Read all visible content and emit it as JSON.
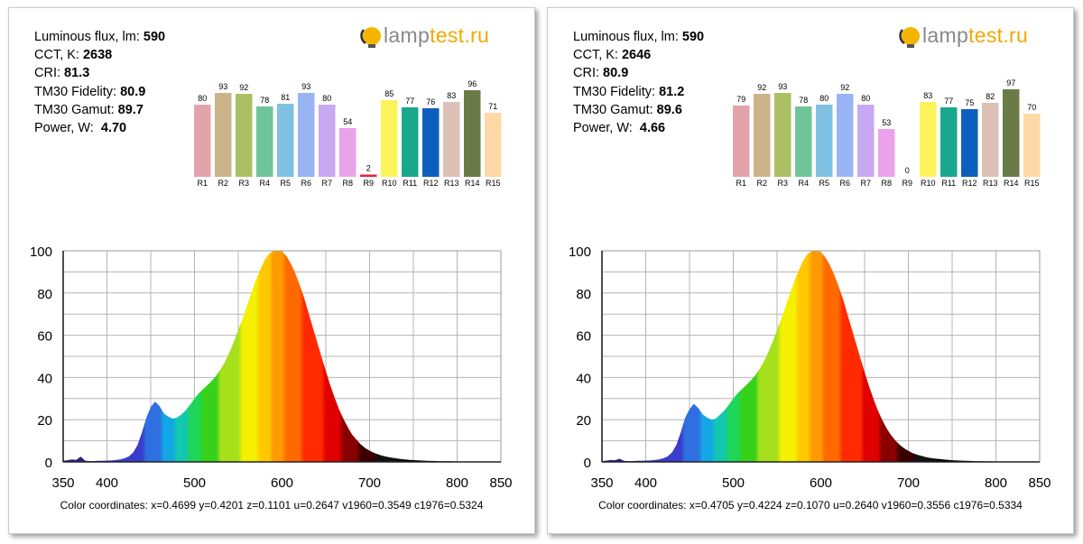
{
  "chart_data": [
    {
      "type": "area",
      "logo": {
        "text_gray": "lamp",
        "text_orange": "test.ru"
      },
      "stats": [
        {
          "label": "Luminous flux, lm:",
          "value": "590"
        },
        {
          "label": "CCT, K:",
          "value": "2638"
        },
        {
          "label": "CRI:",
          "value": "81.3"
        },
        {
          "label": "TM30 Fidelity:",
          "value": "80.9"
        },
        {
          "label": "TM30 Gamut:",
          "value": "89.7"
        },
        {
          "label": "Power, W:",
          "value": "4.70"
        }
      ],
      "cri_bars": {
        "categories": [
          "R1",
          "R2",
          "R3",
          "R4",
          "R5",
          "R6",
          "R7",
          "R8",
          "R9",
          "R10",
          "R11",
          "R12",
          "R13",
          "R14",
          "R15"
        ],
        "values": [
          80,
          93,
          92,
          78,
          81,
          93,
          80,
          54,
          2,
          85,
          77,
          76,
          83,
          96,
          71
        ],
        "colors": [
          "#e2a3ad",
          "#cbb488",
          "#abc065",
          "#6fc49a",
          "#7ec1e2",
          "#98b4f5",
          "#c8a8f3",
          "#eaa3ea",
          "#e8223a",
          "#fdf35a",
          "#19a88c",
          "#0d5fbe",
          "#dcc0b6",
          "#6a7b48",
          "#fed9a7"
        ]
      },
      "spectrum": {
        "x": [
          350,
          355,
          360,
          365,
          370,
          375,
          380,
          385,
          390,
          395,
          400,
          405,
          410,
          415,
          420,
          425,
          430,
          435,
          440,
          445,
          450,
          455,
          460,
          465,
          470,
          475,
          480,
          485,
          490,
          495,
          500,
          505,
          510,
          515,
          520,
          525,
          530,
          535,
          540,
          545,
          550,
          555,
          560,
          565,
          570,
          575,
          580,
          585,
          590,
          595,
          600,
          605,
          610,
          615,
          620,
          625,
          630,
          635,
          640,
          645,
          650,
          655,
          660,
          665,
          670,
          675,
          680,
          685,
          690,
          695,
          700,
          705,
          710,
          715,
          720,
          725,
          730,
          735,
          740,
          745,
          750,
          755,
          760,
          765,
          770,
          775,
          780,
          785,
          790,
          795,
          800,
          805,
          810,
          815,
          820,
          825,
          830,
          835,
          840,
          845,
          850
        ],
        "y": [
          0.5,
          0.8,
          1.2,
          1.0,
          2.5,
          0.6,
          0.4,
          0.4,
          0.5,
          0.5,
          0.6,
          0.7,
          0.9,
          1.2,
          1.7,
          2.6,
          4.5,
          8,
          14,
          21,
          26,
          28.6,
          26.5,
          23,
          21.5,
          20.5,
          21,
          22.5,
          24.5,
          27,
          30,
          32.5,
          34.5,
          36.5,
          38.5,
          41,
          44,
          47.5,
          52,
          57,
          62.5,
          68,
          74,
          80,
          86,
          91,
          95.5,
          98.5,
          99.8,
          100,
          99.8,
          97.5,
          94,
          89.5,
          84,
          78,
          71,
          64,
          57,
          50,
          43,
          36.5,
          30.5,
          25,
          20.5,
          16.5,
          13,
          10.5,
          8.3,
          6.6,
          5.3,
          4.3,
          3.5,
          2.9,
          2.4,
          2.0,
          1.7,
          1.4,
          1.2,
          1.0,
          0.85,
          0.72,
          0.62,
          0.54,
          0.47,
          0.41,
          0.36,
          0.32,
          0.28,
          0.25,
          0.22,
          0.2,
          0.18,
          0.16,
          0.15,
          0.14,
          0.13,
          0.12,
          0.11,
          0.1,
          0.1
        ],
        "xlim": [
          350,
          850
        ],
        "ylim": [
          0,
          100
        ],
        "xticks": [
          "350",
          "400",
          "500",
          "600",
          "700",
          "800",
          "850"
        ],
        "yticks": [
          "0",
          "20",
          "40",
          "60",
          "80",
          "100"
        ],
        "grid": true
      },
      "color_coordinates": "Color coordinates: x=0.4699 y=0.4201 z=0.1101 u=0.2647 v1960=0.3549 c1976=0.5324"
    },
    {
      "type": "area",
      "logo": {
        "text_gray": "lamp",
        "text_orange": "test.ru"
      },
      "stats": [
        {
          "label": "Luminous flux, lm:",
          "value": "590"
        },
        {
          "label": "CCT, K:",
          "value": "2646"
        },
        {
          "label": "CRI:",
          "value": "80.9"
        },
        {
          "label": "TM30 Fidelity:",
          "value": "81.2"
        },
        {
          "label": "TM30 Gamut:",
          "value": "89.6"
        },
        {
          "label": "Power, W:",
          "value": "4.66"
        }
      ],
      "cri_bars": {
        "categories": [
          "R1",
          "R2",
          "R3",
          "R4",
          "R5",
          "R6",
          "R7",
          "R8",
          "R9",
          "R10",
          "R11",
          "R12",
          "R13",
          "R14",
          "R15"
        ],
        "values": [
          79,
          92,
          93,
          78,
          80,
          92,
          80,
          53,
          0,
          83,
          77,
          75,
          82,
          97,
          70
        ],
        "colors": [
          "#e2a3ad",
          "#cbb488",
          "#abc065",
          "#6fc49a",
          "#7ec1e2",
          "#98b4f5",
          "#c8a8f3",
          "#eaa3ea",
          "#e8223a",
          "#fdf35a",
          "#19a88c",
          "#0d5fbe",
          "#dcc0b6",
          "#6a7b48",
          "#fed9a7"
        ]
      },
      "spectrum": {
        "x": [
          350,
          355,
          360,
          365,
          370,
          375,
          380,
          385,
          390,
          395,
          400,
          405,
          410,
          415,
          420,
          425,
          430,
          435,
          440,
          445,
          450,
          455,
          460,
          465,
          470,
          475,
          480,
          485,
          490,
          495,
          500,
          505,
          510,
          515,
          520,
          525,
          530,
          535,
          540,
          545,
          550,
          555,
          560,
          565,
          570,
          575,
          580,
          585,
          590,
          595,
          600,
          605,
          610,
          615,
          620,
          625,
          630,
          635,
          640,
          645,
          650,
          655,
          660,
          665,
          670,
          675,
          680,
          685,
          690,
          695,
          700,
          705,
          710,
          715,
          720,
          725,
          730,
          735,
          740,
          745,
          750,
          755,
          760,
          765,
          770,
          775,
          780,
          785,
          790,
          795,
          800,
          805,
          810,
          815,
          820,
          825,
          830,
          835,
          840,
          845,
          850
        ],
        "y": [
          0.4,
          0.6,
          0.9,
          0.8,
          1.5,
          0.5,
          0.4,
          0.4,
          0.5,
          0.5,
          0.6,
          0.7,
          0.9,
          1.2,
          1.7,
          2.6,
          4.5,
          8,
          14,
          21,
          25,
          27.5,
          25.5,
          22.5,
          21,
          20,
          20.5,
          22.5,
          24.5,
          27,
          30,
          32.5,
          34.5,
          36.5,
          38.5,
          41,
          44,
          47.5,
          52,
          57,
          62.5,
          68,
          74,
          80,
          86,
          91,
          95.5,
          98.5,
          99.8,
          100,
          99.5,
          97,
          93.5,
          89,
          83.5,
          77.5,
          70.5,
          63.5,
          56.5,
          49.5,
          42.5,
          36,
          30,
          24.5,
          20,
          16,
          12.8,
          10.2,
          8.1,
          6.5,
          5.2,
          4.2,
          3.4,
          2.8,
          2.3,
          1.9,
          1.6,
          1.35,
          1.15,
          0.98,
          0.83,
          0.7,
          0.6,
          0.52,
          0.45,
          0.39,
          0.34,
          0.3,
          0.27,
          0.24,
          0.21,
          0.19,
          0.17,
          0.15,
          0.14,
          0.13,
          0.12,
          0.11,
          0.1,
          0.1,
          0.1
        ],
        "xlim": [
          350,
          850
        ],
        "ylim": [
          0,
          100
        ],
        "xticks": [
          "350",
          "400",
          "500",
          "600",
          "700",
          "800",
          "850"
        ],
        "yticks": [
          "0",
          "20",
          "40",
          "60",
          "80",
          "100"
        ],
        "grid": true
      },
      "color_coordinates": "Color coordinates: x=0.4705 y=0.4224 z=0.1070 u=0.2640 v1960=0.3556 c1976=0.5334"
    }
  ]
}
